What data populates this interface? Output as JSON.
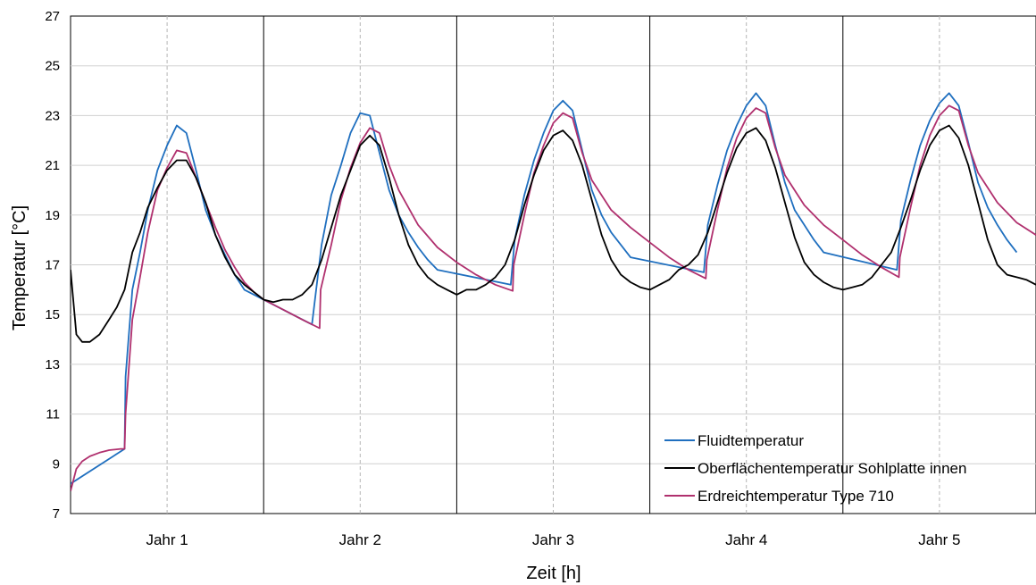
{
  "chart_data": {
    "type": "line",
    "xlabel": "Zeit [h]",
    "ylabel": "Temperatur [°C]",
    "ylim": [
      7,
      27
    ],
    "yticks": [
      7,
      9,
      11,
      13,
      15,
      17,
      19,
      21,
      23,
      25,
      27
    ],
    "xlim": [
      0,
      5
    ],
    "categories": [
      "Jahr 1",
      "Jahr 2",
      "Jahr 3",
      "Jahr 4",
      "Jahr 5"
    ],
    "grid": true,
    "legend_position": "bottom-right",
    "colors": {
      "fluid": "#1f6fbf",
      "surface": "#000000",
      "soil": "#b0306e",
      "grid": "#d0d0d0",
      "midyear": "#b5b5b5"
    },
    "series": [
      {
        "name": "Fluidtemperatur",
        "key": "fluid",
        "x": [
          0,
          0.28,
          0.285,
          0.32,
          0.36,
          0.4,
          0.45,
          0.5,
          0.55,
          0.6,
          0.65,
          0.7,
          0.75,
          0.8,
          0.85,
          0.9,
          1.25,
          1.28,
          1.3,
          1.35,
          1.4,
          1.45,
          1.5,
          1.55,
          1.6,
          1.65,
          1.7,
          1.75,
          1.8,
          1.85,
          1.9,
          2.28,
          2.3,
          2.35,
          2.4,
          2.45,
          2.5,
          2.55,
          2.6,
          2.65,
          2.7,
          2.75,
          2.8,
          2.85,
          2.9,
          3.28,
          3.3,
          3.35,
          3.4,
          3.45,
          3.5,
          3.55,
          3.6,
          3.65,
          3.7,
          3.75,
          3.8,
          3.85,
          3.9,
          4.28,
          4.3,
          4.35,
          4.4,
          4.45,
          4.5,
          4.55,
          4.6,
          4.65,
          4.7,
          4.75,
          4.8,
          4.85,
          4.9
        ],
        "y": [
          8.2,
          9.6,
          12.5,
          16.0,
          17.5,
          19.2,
          20.8,
          21.8,
          22.6,
          22.3,
          20.8,
          19.2,
          18.2,
          17.4,
          16.6,
          16.0,
          14.6,
          16.5,
          17.8,
          19.8,
          21.0,
          22.3,
          23.1,
          23.0,
          21.5,
          20.0,
          19.0,
          18.3,
          17.7,
          17.2,
          16.8,
          16.2,
          18.0,
          19.8,
          21.2,
          22.3,
          23.2,
          23.6,
          23.2,
          21.6,
          20.0,
          19.0,
          18.3,
          17.8,
          17.3,
          16.7,
          18.6,
          20.2,
          21.6,
          22.6,
          23.4,
          23.9,
          23.4,
          21.8,
          20.3,
          19.2,
          18.6,
          18.0,
          17.5,
          16.8,
          18.8,
          20.4,
          21.8,
          22.8,
          23.5,
          23.9,
          23.4,
          21.9,
          20.3,
          19.3,
          18.6,
          18.0,
          17.5
        ]
      },
      {
        "name": "Oberflächentemperatur Sohlplatte innen",
        "key": "surface",
        "x": [
          0,
          0.03,
          0.06,
          0.1,
          0.15,
          0.2,
          0.24,
          0.28,
          0.32,
          0.36,
          0.4,
          0.45,
          0.5,
          0.55,
          0.6,
          0.65,
          0.7,
          0.75,
          0.8,
          0.85,
          0.9,
          0.95,
          1.0,
          1.05,
          1.1,
          1.15,
          1.2,
          1.25,
          1.3,
          1.35,
          1.4,
          1.45,
          1.5,
          1.55,
          1.6,
          1.65,
          1.7,
          1.75,
          1.8,
          1.85,
          1.9,
          1.95,
          2.0,
          2.05,
          2.1,
          2.15,
          2.2,
          2.25,
          2.3,
          2.35,
          2.4,
          2.45,
          2.5,
          2.55,
          2.6,
          2.65,
          2.7,
          2.75,
          2.8,
          2.85,
          2.9,
          2.95,
          3.0,
          3.05,
          3.1,
          3.15,
          3.2,
          3.25,
          3.3,
          3.35,
          3.4,
          3.45,
          3.5,
          3.55,
          3.6,
          3.65,
          3.7,
          3.75,
          3.8,
          3.85,
          3.9,
          3.95,
          4.0,
          4.05,
          4.1,
          4.15,
          4.2,
          4.25,
          4.3,
          4.35,
          4.4,
          4.45,
          4.5,
          4.55,
          4.6,
          4.65,
          4.7,
          4.75,
          4.8,
          4.85,
          4.9,
          4.95,
          5.0
        ],
        "y": [
          16.8,
          14.2,
          13.9,
          13.9,
          14.2,
          14.8,
          15.3,
          16.0,
          17.5,
          18.3,
          19.3,
          20.1,
          20.8,
          21.2,
          21.2,
          20.5,
          19.5,
          18.2,
          17.3,
          16.6,
          16.2,
          15.9,
          15.6,
          15.5,
          15.6,
          15.6,
          15.8,
          16.2,
          17.2,
          18.5,
          19.8,
          20.8,
          21.8,
          22.2,
          21.8,
          20.5,
          19.0,
          17.8,
          17.0,
          16.5,
          16.2,
          16.0,
          15.8,
          16.0,
          16.0,
          16.2,
          16.5,
          17.0,
          18.0,
          19.4,
          20.6,
          21.6,
          22.2,
          22.4,
          22.0,
          21.0,
          19.6,
          18.2,
          17.2,
          16.6,
          16.3,
          16.1,
          16.0,
          16.2,
          16.4,
          16.8,
          17.0,
          17.4,
          18.3,
          19.5,
          20.7,
          21.7,
          22.3,
          22.5,
          22.0,
          20.9,
          19.5,
          18.1,
          17.1,
          16.6,
          16.3,
          16.1,
          16.0,
          16.1,
          16.2,
          16.5,
          17.0,
          17.5,
          18.5,
          19.6,
          20.8,
          21.8,
          22.4,
          22.6,
          22.1,
          21.0,
          19.5,
          18.0,
          17.0,
          16.6,
          16.5,
          16.4,
          16.2
        ]
      },
      {
        "name": "Erdreichtemperatur Type 710",
        "key": "soil",
        "x": [
          0,
          0.03,
          0.06,
          0.1,
          0.15,
          0.2,
          0.26,
          0.28,
          0.285,
          0.32,
          0.36,
          0.4,
          0.45,
          0.5,
          0.55,
          0.6,
          0.65,
          0.7,
          0.75,
          0.8,
          0.85,
          0.9,
          0.95,
          1.0,
          1.1,
          1.2,
          1.29,
          1.295,
          1.35,
          1.4,
          1.45,
          1.5,
          1.55,
          1.6,
          1.65,
          1.7,
          1.8,
          1.9,
          2.0,
          2.1,
          2.2,
          2.29,
          2.295,
          2.35,
          2.4,
          2.45,
          2.5,
          2.55,
          2.6,
          2.65,
          2.7,
          2.8,
          2.9,
          3.0,
          3.1,
          3.2,
          3.29,
          3.295,
          3.35,
          3.4,
          3.45,
          3.5,
          3.55,
          3.6,
          3.65,
          3.7,
          3.8,
          3.9,
          4.0,
          4.1,
          4.2,
          4.29,
          4.295,
          4.35,
          4.4,
          4.45,
          4.5,
          4.55,
          4.6,
          4.65,
          4.7,
          4.8,
          4.9,
          5.0
        ],
        "y": [
          7.9,
          8.8,
          9.1,
          9.3,
          9.45,
          9.55,
          9.6,
          9.6,
          11.0,
          14.8,
          16.5,
          18.3,
          20.0,
          20.9,
          21.6,
          21.5,
          20.5,
          19.5,
          18.5,
          17.6,
          16.9,
          16.3,
          15.9,
          15.6,
          15.2,
          14.8,
          14.45,
          16.0,
          17.8,
          19.6,
          20.9,
          21.9,
          22.5,
          22.3,
          21.0,
          20.0,
          18.6,
          17.7,
          17.1,
          16.6,
          16.2,
          15.95,
          17.0,
          19.0,
          20.7,
          21.8,
          22.7,
          23.1,
          22.9,
          21.5,
          20.4,
          19.2,
          18.5,
          17.9,
          17.3,
          16.8,
          16.45,
          17.2,
          19.2,
          20.9,
          22.1,
          22.9,
          23.3,
          23.1,
          21.7,
          20.6,
          19.4,
          18.6,
          18.0,
          17.4,
          16.9,
          16.5,
          17.3,
          19.3,
          21.0,
          22.2,
          23.0,
          23.4,
          23.2,
          21.8,
          20.7,
          19.5,
          18.7,
          18.2
        ]
      }
    ]
  }
}
